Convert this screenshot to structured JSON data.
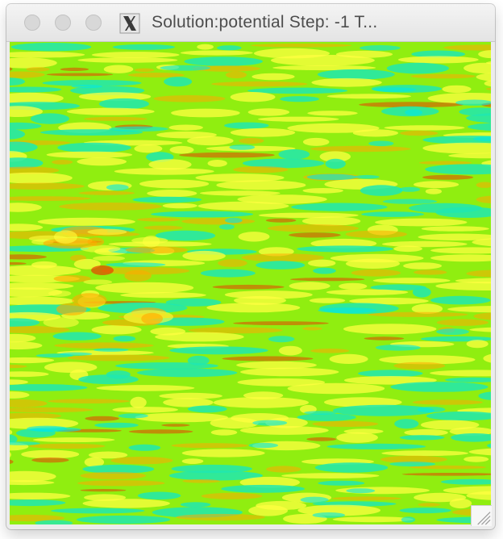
{
  "window": {
    "title": "Solution:potential Step: -1 T..."
  },
  "icons": {
    "close": "close-button-icon",
    "minimize": "minimize-button-icon",
    "maximize": "zoom-button-icon",
    "app": "x11-icon",
    "resize": "resize-grip-icon"
  },
  "colors": {
    "background_green": "#90ee10",
    "yellow": "#ffff40",
    "orange": "#ffaa00",
    "red": "#e84000",
    "cyan": "#20e8b0",
    "cyan_core": "#00e8e8"
  }
}
